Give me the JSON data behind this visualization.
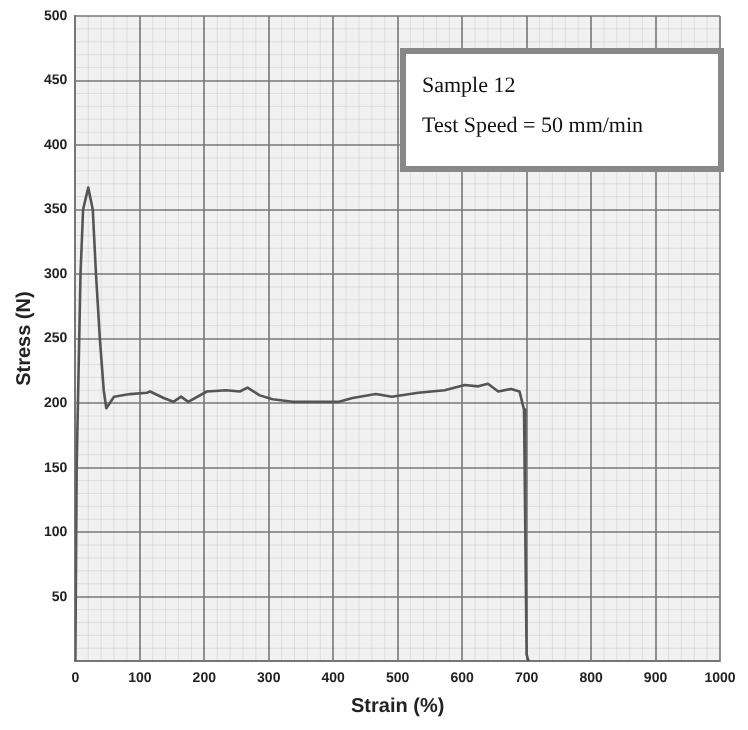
{
  "chart_data": {
    "type": "line",
    "xlabel": "Strain (%)",
    "ylabel": "Stress (N)",
    "annotations": [
      "Sample 12",
      "Test Speed = 50 mm/min"
    ],
    "x": [
      0,
      2,
      8,
      12,
      20,
      27,
      32,
      38,
      44,
      48,
      60,
      85,
      111,
      116,
      137,
      152,
      164,
      175,
      204,
      234,
      255,
      267,
      286,
      306,
      337,
      368,
      409,
      430,
      466,
      491,
      532,
      573,
      604,
      625,
      640,
      656,
      676,
      689,
      693,
      696,
      698,
      700,
      703
    ],
    "series": [
      {
        "color": "#555555",
        "values": [
          0,
          150,
          300,
          350,
          367,
          350,
          300,
          250,
          210,
          196,
          205,
          207,
          208,
          209,
          204,
          201,
          205,
          201,
          209,
          210,
          209,
          212,
          206,
          203,
          201,
          201,
          201,
          204,
          207,
          205,
          208,
          210,
          214,
          213,
          215,
          209,
          211,
          209,
          201,
          195,
          100,
          5,
          0
        ]
      }
    ],
    "xlim": [
      0,
      1000
    ],
    "xticks": [
      0,
      100,
      200,
      300,
      400,
      500,
      600,
      700,
      800,
      900,
      1000
    ],
    "ylim": [
      0,
      500
    ],
    "yticks": [
      {
        "value": 0,
        "label": null
      },
      50,
      100,
      150,
      200,
      250,
      300,
      350,
      400,
      450,
      500
    ],
    "grid": true,
    "legend": false,
    "marker": "none",
    "line_style": "solid"
  }
}
